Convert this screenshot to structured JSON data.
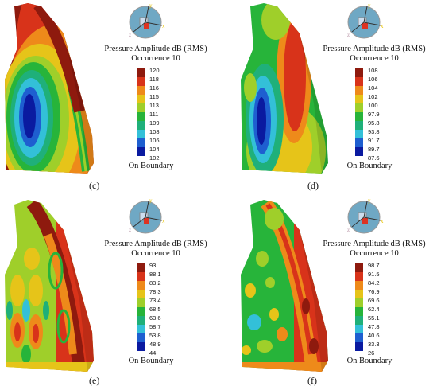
{
  "colors": [
    "#0a1aa0",
    "#1e5fd0",
    "#33c0d8",
    "#1fb07a",
    "#27b43a",
    "#9fcf2a",
    "#e6c419",
    "#ee8a1a",
    "#d8331a",
    "#8e1a0e"
  ],
  "panels": [
    {
      "caption": "(c)",
      "title": "Pressure Amplitude dB (RMS)",
      "subtitle": "Occurrence 10",
      "ticks": [
        "120",
        "118",
        "116",
        "115",
        "113",
        "111",
        "109",
        "108",
        "106",
        "104",
        "102"
      ],
      "boundary_label": "On Boundary"
    },
    {
      "caption": "(d)",
      "title": "Pressure Amplitude dB (RMS)",
      "subtitle": "Occurrence 10",
      "ticks": [
        "108",
        "106",
        "104",
        "102",
        "100",
        "97.9",
        "95.8",
        "93.8",
        "91.7",
        "89.7",
        "87.6"
      ],
      "boundary_label": "On Boundary"
    },
    {
      "caption": "(e)",
      "title": "Pressure Amplitude dB (RMS)",
      "subtitle": "Occurrence 10",
      "ticks": [
        "93",
        "88.1",
        "83.2",
        "78.3",
        "73.4",
        "68.5",
        "63.6",
        "58.7",
        "53.8",
        "48.9",
        "44"
      ],
      "boundary_label": "On Boundary"
    },
    {
      "caption": "(f)",
      "title": "Pressure Amplitude dB (RMS)",
      "subtitle": "Occurrence 10",
      "ticks": [
        "98.7",
        "91.5",
        "84.2",
        "76.9",
        "69.6",
        "62.4",
        "55.1",
        "47.8",
        "40.6",
        "33.3",
        "26"
      ],
      "boundary_label": "On Boundary"
    }
  ]
}
